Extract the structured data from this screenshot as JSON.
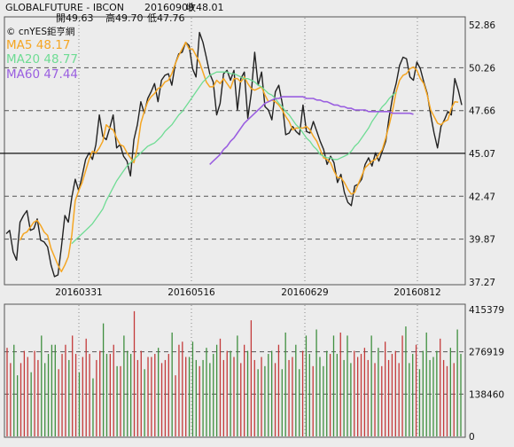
{
  "header": {
    "symbol": "GLOBALFUTURE - IBCON",
    "date": "20160909",
    "close_label": "收48.01",
    "open_label": "開49.63",
    "high_label": "高49.70",
    "low_label": "低47.76"
  },
  "legend": {
    "source": "© cnYES鉅亨網",
    "ma5": "MA5 48.17",
    "ma20": "MA20 48.77",
    "ma60": "MA60 47.44"
  },
  "colors": {
    "price": "#222222",
    "ma5": "#f5a623",
    "ma20": "#6fdc94",
    "ma60": "#9a5fe0",
    "volume_up": "#c43a3a",
    "volume_down": "#3f8f3f",
    "grid_dashed": "#555555",
    "frame": "#555555",
    "background": "#ececec"
  },
  "chart_data": [
    {
      "type": "line",
      "xlabels": [
        "20160331",
        "20160516",
        "20160629",
        "20160812"
      ],
      "yticks": [
        "52.86",
        "50.26",
        "47.66",
        "45.07",
        "42.47",
        "39.87",
        "37.27"
      ],
      "ylim": [
        37.27,
        52.86
      ],
      "reference_line": 45.07,
      "dashed_levels": [
        50.26,
        47.66,
        42.47,
        39.87
      ],
      "grid": "vertical dotted at date labels; horizontal dashed",
      "legend_position": "top-left",
      "series": [
        {
          "name": "close",
          "key": "price",
          "values": [
            40.2,
            40.4,
            39.1,
            38.6,
            40.9,
            41.3,
            41.6,
            40.4,
            40.5,
            41.1,
            39.8,
            39.7,
            39.4,
            38.3,
            37.6,
            37.7,
            39.4,
            41.3,
            40.9,
            42.4,
            43.5,
            42.8,
            43.7,
            44.7,
            45.1,
            44.7,
            45.6,
            47.4,
            46.1,
            45.9,
            46.6,
            47.4,
            45.4,
            45.6,
            44.9,
            44.6,
            43.7,
            45.9,
            46.8,
            48.2,
            47.5,
            48.4,
            48.8,
            49.3,
            48.2,
            49.5,
            49.8,
            49.9,
            49.2,
            50.5,
            51.1,
            51.2,
            51.8,
            51.6,
            50.2,
            49.7,
            52.4,
            51.8,
            50.9,
            49.9,
            49.4,
            47.4,
            48.1,
            49.9,
            50.1,
            49.5,
            50.1,
            47.7,
            49.6,
            50.0,
            47.2,
            48.7,
            51.2,
            49.2,
            50.0,
            47.9,
            47.7,
            47.1,
            48.8,
            49.2,
            48.1,
            46.2,
            46.3,
            46.7,
            46.4,
            46.2,
            48.0,
            46.4,
            46.3,
            47.0,
            46.4,
            45.8,
            45.3,
            44.4,
            44.9,
            44.5,
            43.3,
            43.8,
            42.7,
            42.1,
            41.9,
            43.1,
            43.2,
            43.5,
            44.4,
            44.8,
            44.3,
            45.1,
            44.6,
            45.2,
            45.8,
            47.3,
            48.5,
            49.3,
            50.4,
            50.9,
            50.8,
            49.7,
            49.5,
            50.6,
            50.2,
            49.4,
            48.7,
            47.4,
            46.3,
            45.4,
            46.7,
            47.1,
            47.6,
            47.4,
            49.6,
            48.9,
            48.0
          ]
        },
        {
          "name": "MA5 48.17",
          "key": "ma5",
          "values": [
            null,
            null,
            null,
            null,
            39.8,
            40.2,
            40.3,
            40.6,
            40.9,
            41.0,
            40.7,
            40.3,
            40.1,
            39.3,
            38.8,
            38.3,
            37.9,
            38.3,
            38.8,
            40.1,
            42.2,
            42.8,
            43.3,
            44.0,
            44.7,
            45.2,
            45.1,
            45.4,
            45.8,
            46.8,
            46.6,
            46.5,
            46.0,
            45.6,
            45.5,
            45.1,
            44.8,
            44.5,
            45.4,
            46.9,
            47.6,
            48.2,
            48.5,
            48.7,
            49.0,
            49.1,
            49.4,
            49.5,
            49.9,
            50.5,
            51.0,
            51.4,
            51.8,
            51.4,
            51.4,
            51.0,
            50.6,
            50.0,
            49.4,
            49.1,
            49.1,
            49.5,
            49.3,
            49.6,
            49.3,
            49.0,
            49.6,
            49.6,
            49.4,
            49.7,
            49.3,
            49.0,
            48.9,
            49.0,
            49.1,
            48.6,
            48.2,
            48.3,
            48.2,
            48.0,
            47.7,
            47.3,
            47.0,
            46.5,
            46.6,
            46.6,
            46.6,
            46.7,
            46.5,
            46.1,
            45.8,
            45.3,
            44.8,
            44.7,
            44.5,
            44.0,
            43.6,
            43.6,
            43.3,
            42.9,
            42.6,
            42.7,
            43.2,
            43.7,
            44.2,
            44.4,
            44.6,
            44.7,
            45.0,
            45.3,
            46.0,
            46.8,
            47.7,
            48.8,
            49.5,
            49.8,
            49.9,
            50.2,
            50.3,
            50.1,
            49.6,
            49.3,
            48.6,
            47.7,
            47.3,
            46.9,
            46.8,
            47.0,
            47.1,
            47.8,
            48.2,
            48.17
          ]
        },
        {
          "name": "MA20 48.77",
          "key": "ma20",
          "values": [
            null,
            null,
            null,
            null,
            null,
            null,
            null,
            null,
            null,
            null,
            null,
            null,
            null,
            null,
            null,
            null,
            null,
            null,
            null,
            39.6,
            39.8,
            40.0,
            40.2,
            40.4,
            40.6,
            40.8,
            41.1,
            41.4,
            41.7,
            42.2,
            42.6,
            43.0,
            43.4,
            43.7,
            44.0,
            44.3,
            44.5,
            44.7,
            44.9,
            45.1,
            45.3,
            45.5,
            45.6,
            45.7,
            45.9,
            46.1,
            46.4,
            46.6,
            46.8,
            47.1,
            47.4,
            47.6,
            47.9,
            48.2,
            48.5,
            48.8,
            49.1,
            49.4,
            49.6,
            49.8,
            49.9,
            50.0,
            50.0,
            50.0,
            50.0,
            49.9,
            49.9,
            49.8,
            49.7,
            49.6,
            49.6,
            49.5,
            49.4,
            49.2,
            49.1,
            48.9,
            48.7,
            48.6,
            48.4,
            48.1,
            47.9,
            47.6,
            47.4,
            47.1,
            46.8,
            46.6,
            46.3,
            46.0,
            45.8,
            45.5,
            45.3,
            45.0,
            44.9,
            44.8,
            44.8,
            44.7,
            44.7,
            44.8,
            44.9,
            45.0,
            45.2,
            45.5,
            45.7,
            46.0,
            46.3,
            46.6,
            47.0,
            47.3,
            47.6,
            47.9,
            48.1,
            48.4,
            48.6,
            48.77
          ]
        },
        {
          "name": "MA60 47.44",
          "key": "ma60",
          "values": [
            null,
            null,
            null,
            null,
            null,
            null,
            null,
            null,
            null,
            null,
            null,
            null,
            null,
            null,
            null,
            null,
            null,
            null,
            null,
            null,
            null,
            null,
            null,
            null,
            null,
            null,
            null,
            null,
            null,
            null,
            null,
            null,
            null,
            null,
            null,
            null,
            null,
            null,
            null,
            null,
            null,
            null,
            null,
            null,
            null,
            null,
            null,
            null,
            null,
            null,
            null,
            null,
            null,
            null,
            null,
            null,
            null,
            null,
            null,
            44.4,
            44.6,
            44.8,
            45.0,
            45.3,
            45.5,
            45.8,
            46.0,
            46.3,
            46.6,
            46.9,
            47.1,
            47.3,
            47.5,
            47.7,
            47.9,
            48.1,
            48.2,
            48.3,
            48.4,
            48.4,
            48.5,
            48.5,
            48.5,
            48.5,
            48.5,
            48.5,
            48.5,
            48.4,
            48.4,
            48.4,
            48.3,
            48.3,
            48.2,
            48.2,
            48.1,
            48.0,
            48.0,
            47.9,
            47.9,
            47.8,
            47.8,
            47.7,
            47.7,
            47.7,
            47.7,
            47.6,
            47.6,
            47.6,
            47.6,
            47.6,
            47.6,
            47.6,
            47.5,
            47.5,
            47.5,
            47.5,
            47.5,
            47.5,
            47.44
          ]
        }
      ]
    },
    {
      "type": "bar",
      "yticks": [
        "415379",
        "276919",
        "138460",
        "0"
      ],
      "ylim": [
        0,
        415379
      ],
      "dashed_levels": [
        276919,
        138460
      ],
      "series": [
        {
          "name": "volume",
          "values": [
            290000,
            240000,
            300000,
            200000,
            240000,
            280000,
            260000,
            210000,
            280000,
            250000,
            330000,
            240000,
            270000,
            300000,
            300000,
            220000,
            270000,
            300000,
            250000,
            330000,
            270000,
            210000,
            260000,
            320000,
            270000,
            190000,
            250000,
            280000,
            370000,
            270000,
            270000,
            300000,
            230000,
            230000,
            330000,
            280000,
            270000,
            410000,
            250000,
            280000,
            220000,
            260000,
            260000,
            270000,
            290000,
            240000,
            250000,
            270000,
            340000,
            200000,
            300000,
            310000,
            260000,
            260000,
            310000,
            250000,
            230000,
            250000,
            290000,
            240000,
            270000,
            300000,
            320000,
            250000,
            280000,
            280000,
            260000,
            330000,
            240000,
            300000,
            280000,
            380000,
            250000,
            220000,
            260000,
            230000,
            270000,
            280000,
            240000,
            300000,
            220000,
            340000,
            250000,
            260000,
            300000,
            220000,
            280000,
            330000,
            270000,
            230000,
            350000,
            260000,
            230000,
            280000,
            270000,
            330000,
            270000,
            340000,
            250000,
            330000,
            240000,
            280000,
            260000,
            270000,
            290000,
            250000,
            330000,
            240000,
            290000,
            230000,
            310000,
            250000,
            270000,
            280000,
            240000,
            330000,
            360000,
            240000,
            270000,
            300000,
            220000,
            280000,
            340000,
            250000,
            260000,
            280000,
            320000,
            250000,
            230000,
            290000,
            240000,
            350000,
            270000
          ]
        },
        {
          "name": "direction",
          "values": [
            1,
            1,
            0,
            0,
            1,
            1,
            1,
            0,
            1,
            1,
            0,
            0,
            0,
            0,
            0,
            1,
            1,
            1,
            0,
            1,
            1,
            0,
            1,
            1,
            1,
            0,
            1,
            1,
            0,
            0,
            1,
            1,
            0,
            1,
            0,
            0,
            0,
            1,
            1,
            1,
            0,
            1,
            1,
            1,
            0,
            1,
            1,
            1,
            0,
            1,
            1,
            1,
            1,
            0,
            0,
            0,
            1,
            0,
            0,
            0,
            0,
            0,
            1,
            1,
            1,
            0,
            1,
            0,
            1,
            1,
            0,
            1,
            1,
            0,
            1,
            0,
            0,
            0,
            1,
            1,
            0,
            0,
            1,
            1,
            0,
            0,
            1,
            0,
            0,
            1,
            0,
            0,
            0,
            0,
            1,
            0,
            0,
            1,
            0,
            0,
            0,
            1,
            1,
            1,
            1,
            1,
            0,
            1,
            0,
            1,
            1,
            1,
            1,
            1,
            1,
            1,
            0,
            0,
            0,
            1,
            0,
            0,
            0,
            0,
            0,
            0,
            1,
            1,
            1,
            0,
            1,
            0,
            0
          ]
        }
      ]
    }
  ]
}
